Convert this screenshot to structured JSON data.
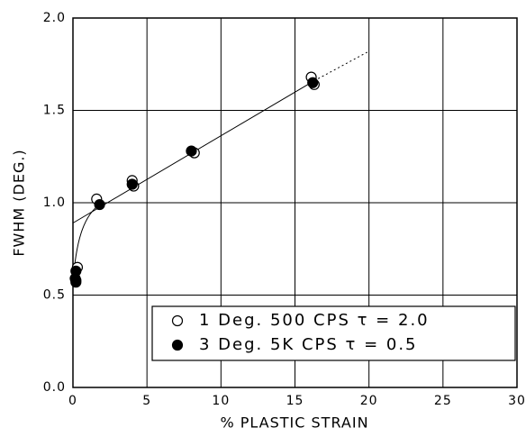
{
  "chart_data": {
    "type": "scatter",
    "x_label": "% PLASTIC STRAIN",
    "y_label": "FWHM (DEG.)",
    "xlim": [
      0,
      30
    ],
    "xticks": [
      0,
      5,
      10,
      15,
      20,
      25,
      30
    ],
    "ylim": [
      0,
      2
    ],
    "yticks": [
      {
        "value": 0,
        "label": "0.0"
      },
      {
        "value": 0.5,
        "label": "0.5"
      },
      {
        "value": 1,
        "label": "1.0"
      },
      {
        "value": 1.5,
        "label": "1.5"
      },
      {
        "value": 2,
        "label": "2.0"
      }
    ],
    "grid": true,
    "legend": "lower right",
    "series": [
      {
        "name": "1 Deg. 500 CPS τ = 2.0",
        "color": "#000000",
        "marker": "open",
        "x": [
          0.3,
          0.2,
          1.6,
          4.0,
          4.1,
          8.2,
          16.1,
          16.3
        ],
        "values": [
          0.65,
          0.58,
          1.02,
          1.12,
          1.09,
          1.27,
          1.68,
          1.64
        ]
      },
      {
        "name": "3 Deg. 5K CPS τ = 0.5",
        "color": "#000000",
        "marker": "filled",
        "x": [
          0.2,
          0.2,
          0.15,
          1.8,
          4.0,
          8.0,
          16.2
        ],
        "values": [
          0.63,
          0.57,
          0.59,
          0.99,
          1.1,
          1.28,
          1.65
        ]
      }
    ]
  }
}
